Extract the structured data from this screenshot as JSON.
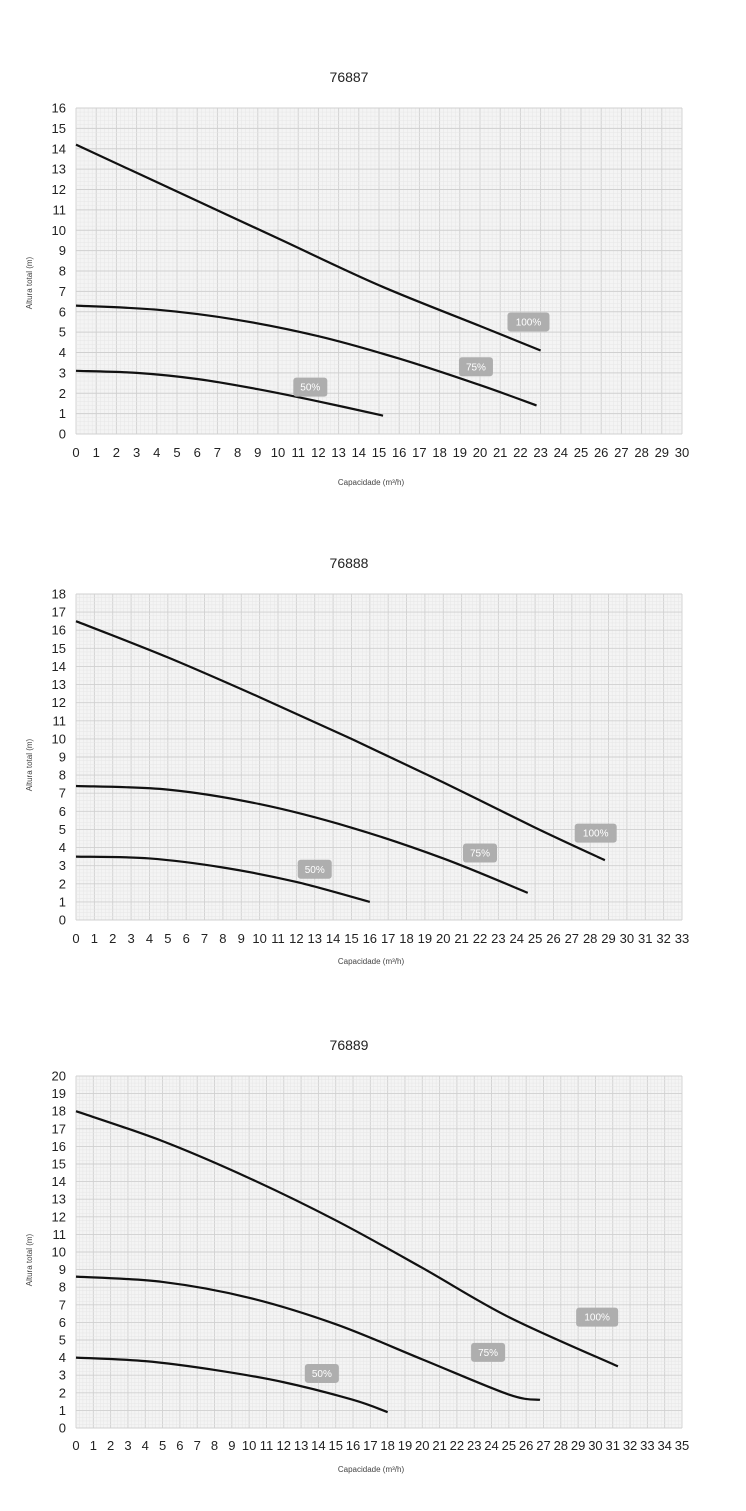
{
  "chart_data": [
    {
      "type": "line",
      "title": "76887",
      "xlabel": "Capacidade (m³/h)",
      "ylabel": "Altura total (m)",
      "xlim": [
        0,
        30
      ],
      "ylim": [
        0,
        16
      ],
      "x_ticks": [
        "0",
        "1",
        "2",
        "3",
        "4",
        "5",
        "6",
        "7",
        "8",
        "9",
        "10",
        "11",
        "12",
        "13",
        "14",
        "15",
        "16",
        "17",
        "18",
        "19",
        "20",
        "21",
        "22",
        "23",
        "24",
        "25",
        "26",
        "27",
        "28",
        "29",
        "30"
      ],
      "y_ticks": [
        "0",
        "1",
        "2",
        "3",
        "4",
        "5",
        "6",
        "7",
        "8",
        "9",
        "10",
        "11",
        "12",
        "13",
        "14",
        "15",
        "16"
      ],
      "grid": true,
      "series": [
        {
          "name": "100%",
          "x": [
            0,
            5,
            10,
            15,
            20,
            23
          ],
          "y": [
            14.2,
            11.9,
            9.6,
            7.3,
            5.3,
            4.1
          ],
          "label_at": [
            22.4,
            5.5
          ]
        },
        {
          "name": "75%",
          "x": [
            0,
            4,
            8,
            12,
            16,
            20,
            22.8
          ],
          "y": [
            6.3,
            6.1,
            5.6,
            4.8,
            3.7,
            2.4,
            1.4
          ],
          "label_at": [
            19.8,
            3.3
          ]
        },
        {
          "name": "50%",
          "x": [
            0,
            3,
            6,
            9,
            12,
            15.2
          ],
          "y": [
            3.1,
            3.0,
            2.7,
            2.2,
            1.6,
            0.9
          ],
          "label_at": [
            11.6,
            2.3
          ]
        }
      ]
    },
    {
      "type": "line",
      "title": "76888",
      "xlabel": "Capacidade (m³/h)",
      "ylabel": "Altura total (m)",
      "xlim": [
        0,
        33
      ],
      "ylim": [
        0,
        18
      ],
      "x_ticks": [
        "0",
        "1",
        "2",
        "3",
        "4",
        "5",
        "6",
        "7",
        "8",
        "9",
        "10",
        "11",
        "12",
        "13",
        "14",
        "15",
        "16",
        "17",
        "18",
        "19",
        "20",
        "21",
        "22",
        "23",
        "24",
        "25",
        "26",
        "27",
        "28",
        "29",
        "30",
        "31",
        "32",
        "33"
      ],
      "y_ticks": [
        "0",
        "1",
        "2",
        "3",
        "4",
        "5",
        "6",
        "7",
        "8",
        "9",
        "10",
        "11",
        "12",
        "13",
        "14",
        "15",
        "16",
        "17",
        "18"
      ],
      "grid": true,
      "series": [
        {
          "name": "100%",
          "x": [
            0,
            5,
            10,
            15,
            20,
            25,
            28.8
          ],
          "y": [
            16.5,
            14.5,
            12.3,
            10.0,
            7.6,
            5.1,
            3.3
          ],
          "label_at": [
            28.3,
            4.8
          ]
        },
        {
          "name": "75%",
          "x": [
            0,
            5,
            10,
            15,
            20,
            24.6
          ],
          "y": [
            7.4,
            7.2,
            6.4,
            5.1,
            3.4,
            1.5
          ],
          "label_at": [
            22.0,
            3.7
          ]
        },
        {
          "name": "50%",
          "x": [
            0,
            4,
            8,
            12,
            16
          ],
          "y": [
            3.5,
            3.4,
            2.9,
            2.1,
            1.0
          ],
          "label_at": [
            13.0,
            2.8
          ]
        }
      ]
    },
    {
      "type": "line",
      "title": "76889",
      "xlabel": "Capacidade (m³/h)",
      "ylabel": "Altura total (m)",
      "xlim": [
        0,
        35
      ],
      "ylim": [
        0,
        20
      ],
      "x_ticks": [
        "0",
        "1",
        "2",
        "3",
        "4",
        "5",
        "6",
        "7",
        "8",
        "9",
        "10",
        "11",
        "12",
        "13",
        "14",
        "15",
        "16",
        "17",
        "18",
        "19",
        "20",
        "21",
        "22",
        "23",
        "24",
        "25",
        "26",
        "27",
        "28",
        "29",
        "30",
        "31",
        "32",
        "33",
        "34",
        "35"
      ],
      "y_ticks": [
        "0",
        "1",
        "2",
        "3",
        "4",
        "5",
        "6",
        "7",
        "8",
        "9",
        "10",
        "11",
        "12",
        "13",
        "14",
        "15",
        "16",
        "17",
        "18",
        "19",
        "20"
      ],
      "grid": true,
      "series": [
        {
          "name": "100%",
          "x": [
            0,
            5,
            10,
            15,
            20,
            25,
            31.3
          ],
          "y": [
            18.0,
            16.3,
            14.2,
            11.8,
            9.1,
            6.3,
            3.5
          ],
          "label_at": [
            30.1,
            6.3
          ]
        },
        {
          "name": "75%",
          "x": [
            0,
            5,
            10,
            15,
            20,
            25,
            26.8
          ],
          "y": [
            8.6,
            8.3,
            7.4,
            5.9,
            3.9,
            1.9,
            1.6
          ],
          "label_at": [
            23.8,
            4.3
          ]
        },
        {
          "name": "50%",
          "x": [
            0,
            4,
            8,
            12,
            16,
            18
          ],
          "y": [
            4.0,
            3.8,
            3.3,
            2.6,
            1.6,
            0.9
          ],
          "label_at": [
            14.2,
            3.1
          ]
        }
      ]
    }
  ]
}
